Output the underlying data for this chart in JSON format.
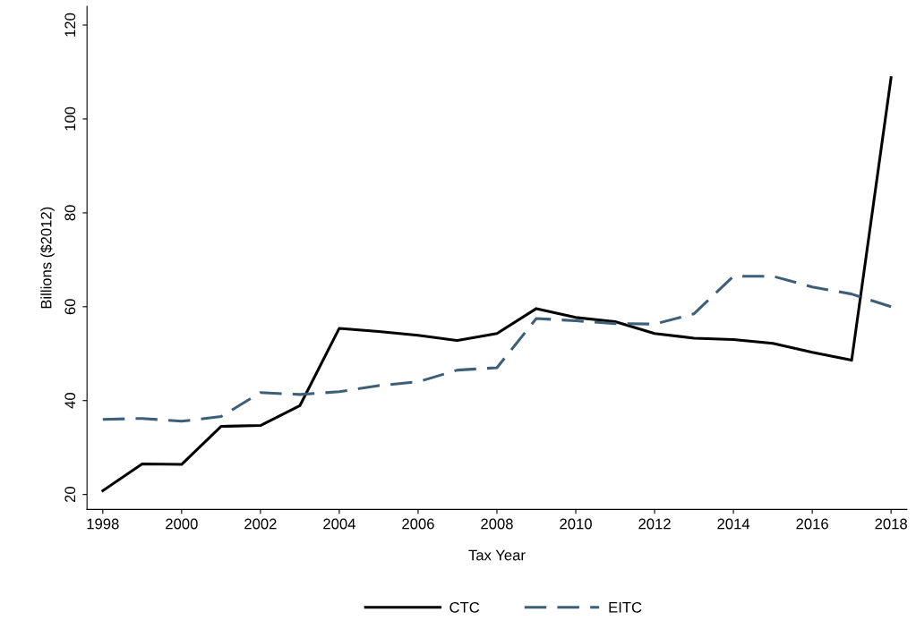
{
  "chart_data": {
    "type": "line",
    "xlabel": "Tax Year",
    "ylabel": "Billions ($2012)",
    "x": [
      1998,
      1999,
      2000,
      2001,
      2002,
      2003,
      2004,
      2005,
      2006,
      2007,
      2008,
      2009,
      2010,
      2011,
      2012,
      2013,
      2014,
      2015,
      2016,
      2017,
      2018
    ],
    "series": [
      {
        "name": "CTC",
        "color": "#000000",
        "line_style": "solid",
        "values": [
          20.8,
          26.5,
          26.4,
          34.5,
          34.7,
          38.9,
          55.4,
          54.7,
          53.9,
          52.8,
          54.3,
          59.6,
          57.7,
          56.8,
          54.3,
          53.3,
          53.0,
          52.2,
          50.3,
          48.6,
          108.8
        ]
      },
      {
        "name": "EITC",
        "color": "#3e5f78",
        "line_style": "dashed",
        "values": [
          36.0,
          36.2,
          35.6,
          36.6,
          41.7,
          41.3,
          41.9,
          43.2,
          44.0,
          46.5,
          47.0,
          57.5,
          57.0,
          56.4,
          56.3,
          58.5,
          66.5,
          66.5,
          64.2,
          62.7,
          60.0
        ]
      }
    ],
    "xlim": [
      1997.6,
      2018.4
    ],
    "xticks": [
      1998,
      2000,
      2002,
      2004,
      2006,
      2008,
      2010,
      2012,
      2014,
      2016,
      2018
    ],
    "ylim": [
      16.8,
      124
    ],
    "yticks": [
      20,
      40,
      60,
      80,
      100,
      120
    ],
    "grid": false,
    "legend": "bottom",
    "marker": "none"
  }
}
